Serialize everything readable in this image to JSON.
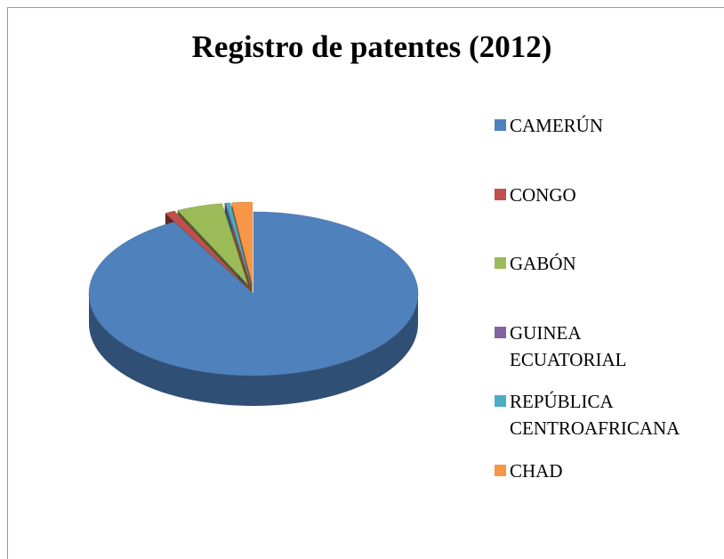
{
  "chart_data": {
    "type": "pie",
    "title": "Registro de patentes (2012)",
    "categories": [
      "CAMERÚN",
      "CONGO",
      "GABÓN",
      "GUINEA ECUATORIAL",
      "REPÚBLICA CENTROAFRICANA",
      "CHAD"
    ],
    "values": [
      92,
      1,
      4.5,
      0.1,
      0.4,
      2
    ],
    "colors": [
      "#4f81bd",
      "#c0504d",
      "#9bbb59",
      "#8064a2",
      "#4bacc6",
      "#f79646"
    ],
    "legend": "right"
  }
}
